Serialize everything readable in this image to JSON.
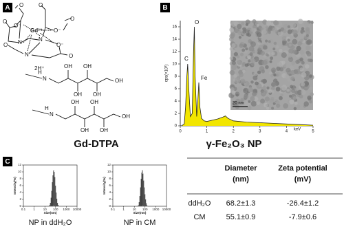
{
  "panel_labels": [
    "A",
    "B",
    "C"
  ],
  "structure": {
    "core_labels": [
      "O",
      "O",
      "O⁻",
      "Gd³⁺",
      "O⁻",
      "O",
      "O",
      "N",
      "N",
      "N",
      "O",
      "O⁻",
      "O"
    ],
    "counterion": "2H⁺",
    "glucamine": [
      {
        "labels": [
          "N",
          "H",
          "OH",
          "OH",
          "OH",
          "OH",
          "OH"
        ]
      },
      {
        "labels": [
          "N",
          "H",
          "OH",
          "OH",
          "OH",
          "OH",
          "OH"
        ]
      }
    ]
  },
  "titles": [
    "Gd-DTPA",
    "γ-Fe₂O₃ NP"
  ],
  "chart_data": [
    {
      "type": "area",
      "ylabel": "cps(×10³)",
      "xlabel": "keV",
      "annotations": [
        "C",
        "O",
        "Fe"
      ],
      "scale_bar": "20 nm",
      "x": [
        0.05,
        0.15,
        0.2,
        0.25,
        0.28,
        0.32,
        0.38,
        0.45,
        0.5,
        0.53,
        0.56,
        0.62,
        0.66,
        0.7,
        0.74,
        0.8,
        0.9,
        1.0,
        1.2,
        1.4,
        1.6,
        1.7,
        1.8,
        2.0,
        2.5,
        3.0,
        3.5,
        4.0,
        4.5,
        5.0
      ],
      "values": [
        0,
        0.3,
        3,
        8,
        10,
        6,
        1.5,
        2,
        12,
        16,
        8,
        1.5,
        4,
        7,
        3,
        1.2,
        0.8,
        0.7,
        0.9,
        1.1,
        1.4,
        1.6,
        1.2,
        0.8,
        0.6,
        0.5,
        0.4,
        0.3,
        0.2,
        0.1
      ],
      "color": "#f2e600",
      "xlim": [
        0,
        5
      ],
      "ylim": [
        0,
        17
      ],
      "xticks": [
        0,
        1,
        2,
        3,
        4,
        5
      ],
      "yticks": [
        0,
        2,
        4,
        6,
        8,
        10,
        12,
        14,
        16
      ]
    },
    {
      "type": "histogram",
      "title": "NP in ddH₂O",
      "xlabel": "Size(nm)",
      "ylabel": "Intensity(%)",
      "log_x": true,
      "bins": [
        25,
        30,
        35,
        40,
        46,
        53,
        61,
        70,
        81,
        93,
        107,
        123,
        142,
        164,
        190,
        220
      ],
      "values": [
        0.3,
        1,
        2.5,
        4.5,
        7,
        9,
        10.5,
        10,
        8.5,
        6,
        4,
        2.2,
        1,
        0.4,
        0.1
      ],
      "color": "#111111",
      "xlim": [
        0.1,
        10000
      ],
      "xticks": [
        0.1,
        1,
        10,
        100,
        1000,
        10000
      ],
      "ylim": [
        0,
        12
      ],
      "yticks": [
        0,
        2,
        4,
        6,
        8,
        10,
        12
      ]
    },
    {
      "type": "histogram",
      "title": "NP in CM",
      "xlabel": "Size(nm)",
      "ylabel": "Intensity(%)",
      "log_x": true,
      "bins": [
        22,
        26,
        30,
        35,
        40,
        46,
        53,
        61,
        70,
        81,
        93,
        107,
        123,
        142,
        164,
        190
      ],
      "values": [
        0.3,
        1.2,
        3,
        5.5,
        8,
        9.8,
        10.5,
        9.5,
        7.5,
        5.5,
        3.5,
        2,
        0.9,
        0.3,
        0.1
      ],
      "color": "#111111",
      "xlim": [
        0.1,
        10000
      ],
      "xticks": [
        0.1,
        1,
        10,
        100,
        1000,
        10000
      ],
      "ylim": [
        0,
        12
      ],
      "yticks": [
        0,
        2,
        4,
        6,
        8,
        10,
        12
      ]
    }
  ],
  "table": {
    "header": [
      [
        "Diameter",
        "(nm)"
      ],
      [
        "Zeta potential",
        "(mV)"
      ]
    ],
    "rows": [
      [
        "ddH₂O",
        "68.2±1.3",
        "-26.4±1.2"
      ],
      [
        "CM",
        "55.1±0.9",
        "-7.9±0.6"
      ]
    ]
  }
}
